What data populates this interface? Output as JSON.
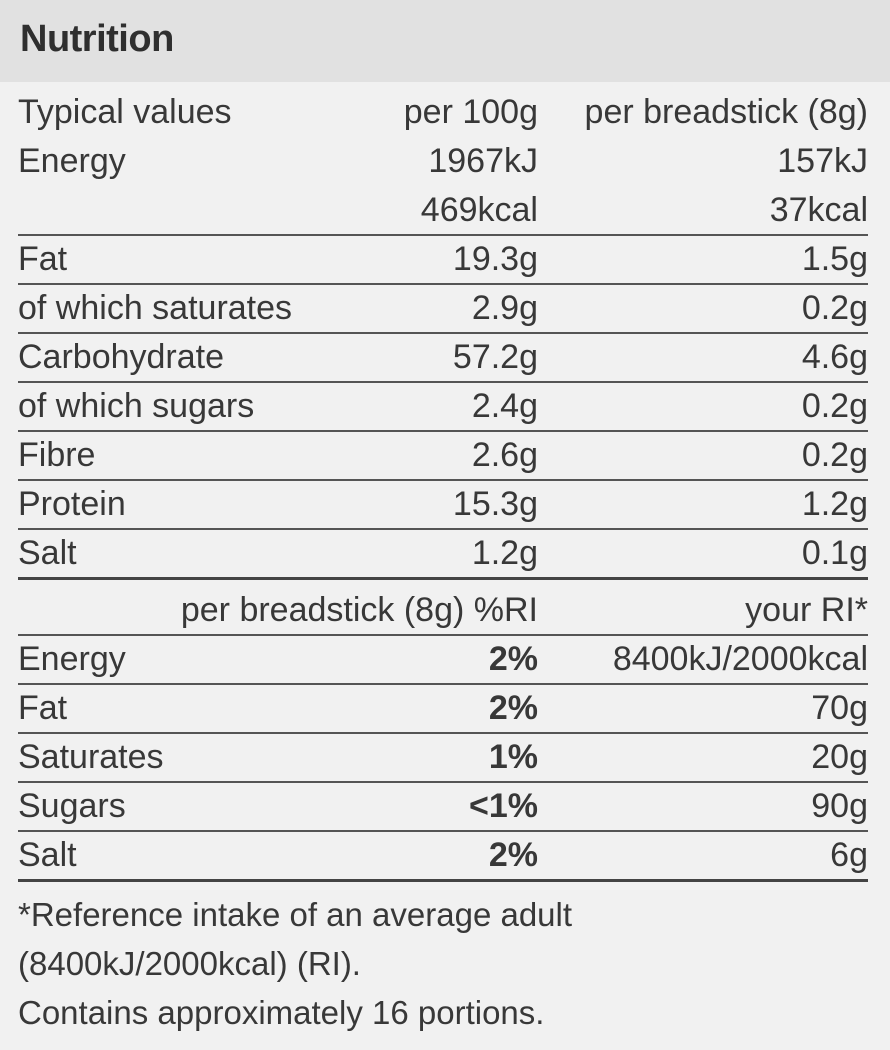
{
  "title": "Nutrition",
  "typical": {
    "header": {
      "label": "Typical values",
      "per100": "per 100g",
      "perStick": "per breadstick (8g)"
    },
    "energy": {
      "label": "Energy",
      "kj100": "1967kJ",
      "kjStick": "157kJ",
      "kcal100": "469kcal",
      "kcalStick": "37kcal"
    },
    "rows": [
      {
        "label": "Fat",
        "per100": "19.3g",
        "perStick": "1.5g"
      },
      {
        "label": "of which saturates",
        "per100": "2.9g",
        "perStick": "0.2g"
      },
      {
        "label": "Carbohydrate",
        "per100": "57.2g",
        "perStick": "4.6g"
      },
      {
        "label": "of which sugars",
        "per100": "2.4g",
        "perStick": "0.2g"
      },
      {
        "label": "Fibre",
        "per100": "2.6g",
        "perStick": "0.2g"
      },
      {
        "label": "Protein",
        "per100": "15.3g",
        "perStick": "1.2g"
      },
      {
        "label": "Salt",
        "per100": "1.2g",
        "perStick": "0.1g"
      }
    ]
  },
  "ri": {
    "header": {
      "perStick": "per breadstick (8g) %RI",
      "yourRI": "your RI*"
    },
    "rows": [
      {
        "label": "Energy",
        "pct": "2%",
        "ri": "8400kJ/2000kcal"
      },
      {
        "label": "Fat",
        "pct": "2%",
        "ri": "70g"
      },
      {
        "label": "Saturates",
        "pct": "1%",
        "ri": "20g"
      },
      {
        "label": "Sugars",
        "pct": "<1%",
        "ri": "90g"
      },
      {
        "label": "Salt",
        "pct": "2%",
        "ri": "6g"
      }
    ]
  },
  "footnote": {
    "line1": "*Reference intake of an average adult",
    "line2": "(8400kJ/2000kcal) (RI).",
    "line3": "Contains approximately 16 portions."
  }
}
